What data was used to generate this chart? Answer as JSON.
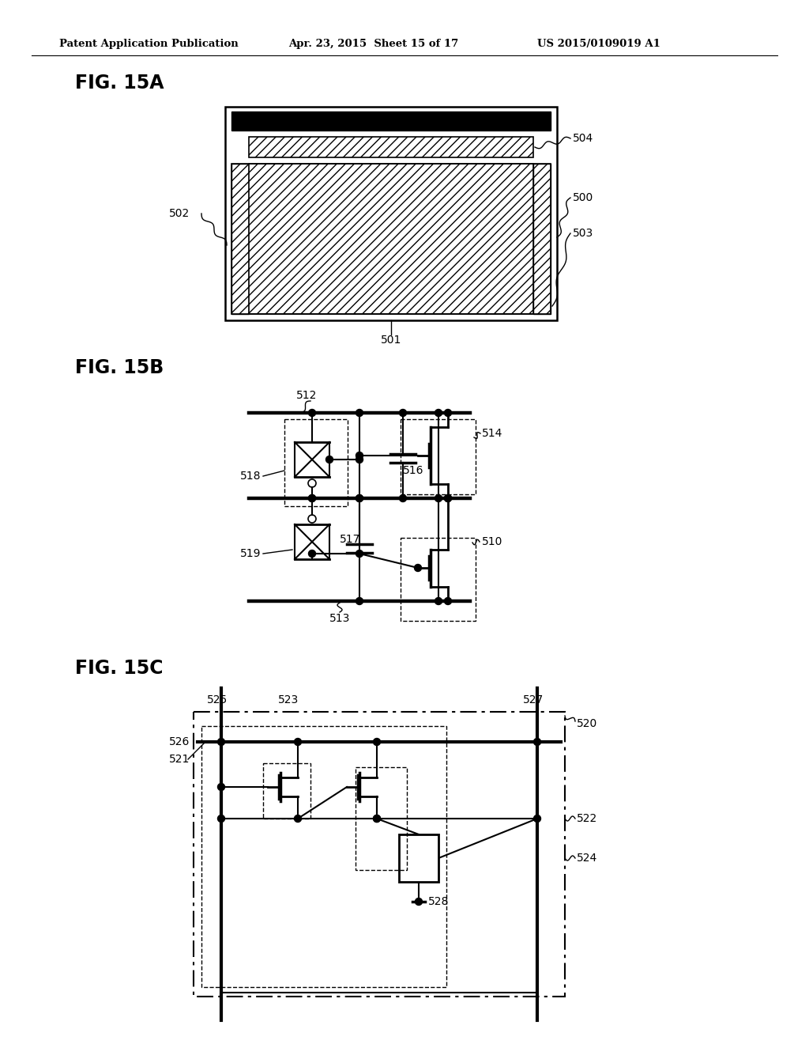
{
  "header_left": "Patent Application Publication",
  "header_mid": "Apr. 23, 2015  Sheet 15 of 17",
  "header_right": "US 2015/0109019 A1",
  "fig15a_label": "FIG. 15A",
  "fig15b_label": "FIG. 15B",
  "fig15c_label": "FIG. 15C",
  "bg_color": "#ffffff",
  "line_color": "#000000"
}
